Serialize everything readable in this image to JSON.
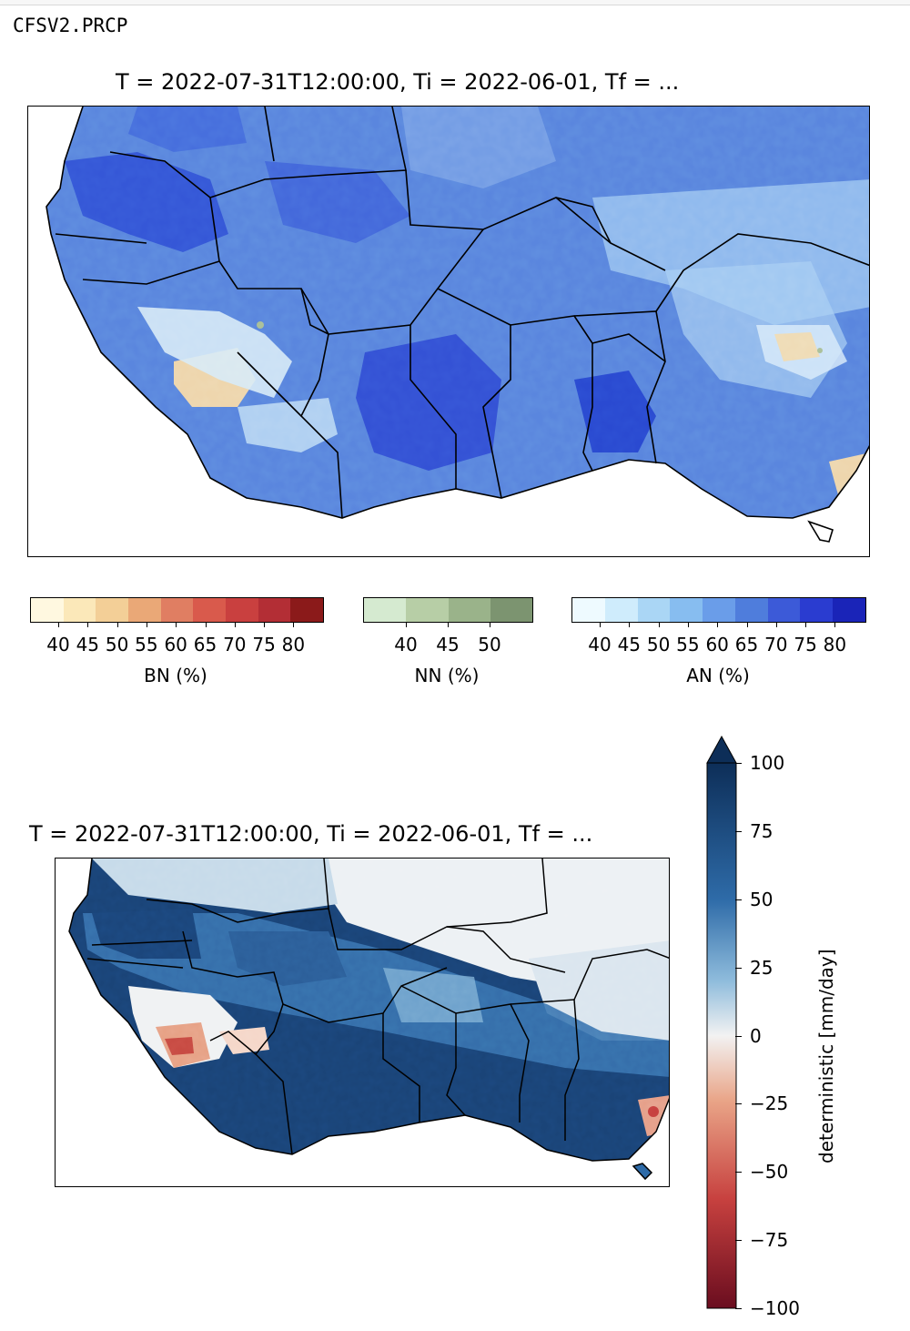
{
  "cell_label": "CFSV2.PRCP",
  "map1": {
    "title": "T = 2022-07-31T12:00:00, Ti = 2022-06-01, Tf = ...",
    "colors": {
      "deep": "#1d36d8",
      "mid": "#4f7ddc",
      "light": "#9cc6ee",
      "pale": "#d9ecf8",
      "sand": "#f0d9b0",
      "green": "#a9bf98"
    }
  },
  "colorbars": [
    {
      "label": "BN (%)",
      "ticks": [
        "40",
        "45",
        "50",
        "55",
        "60",
        "65",
        "70",
        "75",
        "80"
      ],
      "colors": [
        "#fff8e0",
        "#fbe8b9",
        "#f3cf97",
        "#eaa877",
        "#e07e62",
        "#d95a4c",
        "#c9403f",
        "#b32e35",
        "#8b1a1a"
      ]
    },
    {
      "label": "NN (%)",
      "ticks": [
        "40",
        "45",
        "50"
      ],
      "colors": [
        "#d5ead0",
        "#b7cea6",
        "#9ab38a",
        "#7c9470"
      ]
    },
    {
      "label": "AN (%)",
      "ticks": [
        "40",
        "45",
        "50",
        "55",
        "60",
        "65",
        "70",
        "75",
        "80"
      ],
      "colors": [
        "#eefaff",
        "#cfecfc",
        "#aad6f5",
        "#87bdf0",
        "#6a9de9",
        "#4f7ddc",
        "#3c5ad8",
        "#2a3cd0",
        "#1a24b8"
      ]
    }
  ],
  "map2": {
    "title": "T = 2022-07-31T12:00:00, Ti = 2022-06-01, Tf = ...",
    "colorbar_label": "deterministic [mm/day]",
    "ticks": [
      "100",
      "75",
      "50",
      "25",
      "0",
      "−25",
      "−50",
      "−75",
      "−100"
    ],
    "range": [
      -100,
      100
    ],
    "colors": {
      "navy": "#0d2e58",
      "blue": "#2e6ba8",
      "sky": "#8fbcdc",
      "white": "#f2f2f2",
      "salmon": "#e9a487",
      "red": "#c7413f"
    }
  }
}
